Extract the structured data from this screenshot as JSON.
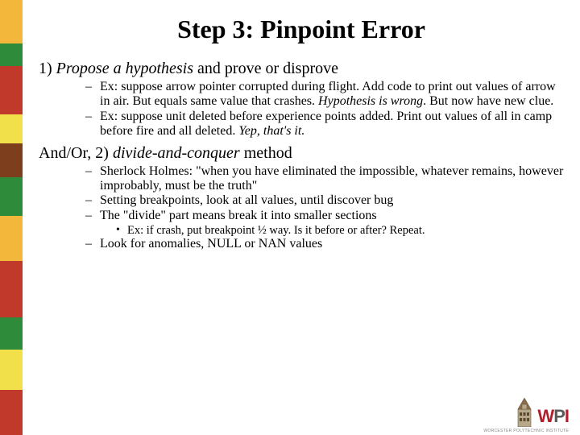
{
  "stripes": [
    {
      "color": "#f2b73b",
      "h": 54
    },
    {
      "color": "#2e8b3a",
      "h": 28
    },
    {
      "color": "#c0392b",
      "h": 60
    },
    {
      "color": "#f2e04a",
      "h": 36
    },
    {
      "color": "#7d3e1e",
      "h": 42
    },
    {
      "color": "#2e8b3a",
      "h": 48
    },
    {
      "color": "#f2b73b",
      "h": 56
    },
    {
      "color": "#c0392b",
      "h": 70
    },
    {
      "color": "#2e8b3a",
      "h": 40
    },
    {
      "color": "#f2e04a",
      "h": 50
    },
    {
      "color": "#c0392b",
      "h": 56
    }
  ],
  "title": "Step 3: Pinpoint Error",
  "point1_prefix": "1) ",
  "point1_em": "Propose a hypothesis",
  "point1_suffix": " and prove or disprove",
  "sub1a_prefix": "Ex: suppose arrow pointer corrupted during flight.  Add code to print out values of arrow in air.  But equals same value that crashes.  ",
  "sub1a_em": "Hypothesis is wrong",
  "sub1a_suffix": ".  But now have new clue.",
  "sub1b_prefix": "Ex: suppose unit deleted before experience points added.  Print out values of all in camp before fire and all deleted.  ",
  "sub1b_em": "Yep, that's it.",
  "point2_prefix": "And/Or, 2) ",
  "point2_em": "divide-and-conquer",
  "point2_suffix": " method",
  "sub2a": "Sherlock Holmes: \"when you have eliminated the impossible, whatever remains, however improbably, must be the truth\"",
  "sub2b": "Setting breakpoints, look at all values, until discover bug",
  "sub2c": "The \"divide\" part means break it into smaller sections",
  "sub2c1": "Ex: if crash, put breakpoint ½ way.  Is it before or after?  Repeat.",
  "sub2d": "Look for anomalies, NULL or NAN values",
  "logo": {
    "w": "W",
    "p": "P",
    "i": "I",
    "sub": "WORCESTER POLYTECHNIC INSTITUTE"
  }
}
